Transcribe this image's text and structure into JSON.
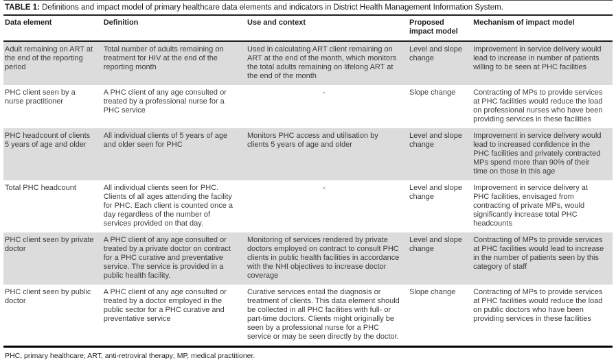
{
  "title": {
    "label": "TABLE 1:",
    "text": "Definitions and impact model of primary healthcare data elements and indicators in District Health Management Information System."
  },
  "table": {
    "columns": [
      "Data element",
      "Definition",
      "Use and context",
      "Proposed impact model",
      "Mechanism of impact model"
    ],
    "rows": [
      {
        "data_element": "Adult remaining on ART at the end of the reporting period",
        "definition": "Total number of adults remaining on treatment for HIV at the end of the reporting month",
        "use_and_context": "Used in calculating ART client remaining on ART at the end of the month, which monitors the total adults remaining on lifelong ART at the end of the month",
        "proposed_impact_model": "Level and slope change",
        "mechanism_of_impact_model": "Improvement in service delivery would lead to increase in number of patients willing to be seen at PHC facilities"
      },
      {
        "data_element": "PHC client seen by a nurse practitioner",
        "definition": "A PHC client of any age consulted or treated by a professional nurse for a PHC service",
        "use_and_context": "-",
        "proposed_impact_model": "Slope change",
        "mechanism_of_impact_model": "Contracting of MPs to provide services at PHC facilities would reduce the load on professional nurses who have been providing services in these facilities"
      },
      {
        "data_element": "PHC headcount of clients 5 years of age and older",
        "definition": "All individual clients of 5 years of age and older seen for PHC",
        "use_and_context": "Monitors PHC access and utilisation by clients 5 years of age and older",
        "proposed_impact_model": "Level and slope change",
        "mechanism_of_impact_model": "Improvement in service delivery would lead to increased confidence in the PHC facilities and privately contracted MPs spend more than 90% of their time on those in this age"
      },
      {
        "data_element": "Total PHC headcount",
        "definition": "All individual clients seen for PHC. Clients of all ages attending the facility for PHC. Each client is counted once a day regardless of the number of services provided on that day.",
        "use_and_context": "-",
        "proposed_impact_model": "Level and slope change",
        "mechanism_of_impact_model": "Improvement in service delivery at PHC facilities, envisaged from contracting of private MPs, would significantly increase total PHC headcounts"
      },
      {
        "data_element": "PHC client seen by private doctor",
        "definition": "A PHC client of any age consulted or treated by a private doctor on contract for a PHC curative and preventative service. The service is provided in a public health facility.",
        "use_and_context": "Monitoring of services rendered by private doctors employed on contract to consult PHC clients in public health facilities in accordance with the NHI objectives to increase doctor coverage",
        "proposed_impact_model": "Level and slope change",
        "mechanism_of_impact_model": "Contracting of MPs to provide services at PHC facilities would lead to increase in the number of patients seen by this category of staff"
      },
      {
        "data_element": "PHC client seen by public doctor",
        "definition": "A PHC client of any age consulted or treated by a doctor employed in the public sector for a PHC curative and preventative service",
        "use_and_context": "Curative services entail the diagnosis or treatment of clients. This data element should be collected in all PHC facilities with full- or part-time doctors. Clients might originally be seen by a professional nurse for a PHC service or may be seen directly by the doctor.",
        "proposed_impact_model": "Slope change",
        "mechanism_of_impact_model": "Contracting of MPs to provide services at PHC facilities would reduce the load on public doctors who have been providing services in these facilities"
      }
    ]
  },
  "footnote": "PHC, primary healthcare; ART, anti-retroviral therapy; MP, medical practitioner."
}
